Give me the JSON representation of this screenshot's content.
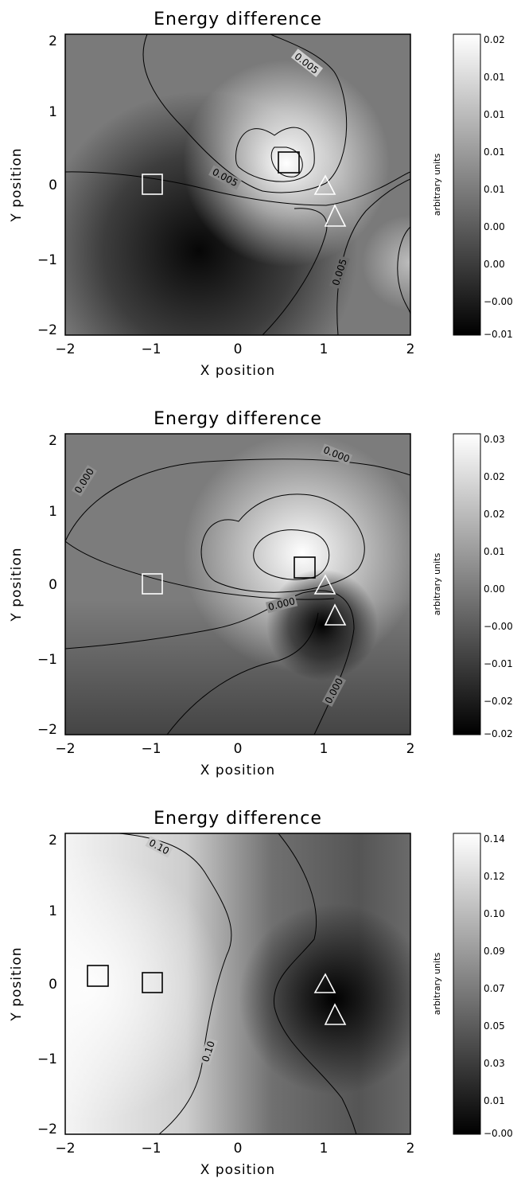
{
  "chart_data": [
    {
      "type": "heatmap",
      "title": "Energy difference",
      "xlabel": "X position",
      "ylabel": "Y position",
      "xlim": [
        -2,
        2
      ],
      "ylim": [
        -2.1,
        2.1
      ],
      "x_ticks": [
        "-2",
        "-1",
        "0",
        "1",
        "2"
      ],
      "y_ticks": [
        "-2",
        "-1",
        "0",
        "1",
        "2"
      ],
      "colorbar": {
        "label": "arbitrary units",
        "ticks": [
          "0.02",
          "0.01",
          "0.01",
          "0.01",
          "0.01",
          "0.00",
          "0.00",
          "-0.00",
          "-0.01"
        ]
      },
      "contour_labels": [
        "0.005",
        "0.005",
        "0.005"
      ],
      "markers": {
        "squares": [
          {
            "x": -0.97,
            "y": 0.0,
            "color": "white"
          },
          {
            "x": 0.6,
            "y": 0.28,
            "color": "black"
          }
        ],
        "triangles": [
          {
            "x": 1.0,
            "y": -0.05,
            "color": "white"
          },
          {
            "x": 1.12,
            "y": -0.45,
            "color": "white"
          }
        ]
      }
    },
    {
      "type": "heatmap",
      "title": "Energy difference",
      "xlabel": "X position",
      "ylabel": "Y position",
      "xlim": [
        -2,
        2
      ],
      "ylim": [
        -2.1,
        2.1
      ],
      "x_ticks": [
        "-2",
        "-1",
        "0",
        "1",
        "2"
      ],
      "y_ticks": [
        "-2",
        "-1",
        "0",
        "1",
        "2"
      ],
      "colorbar": {
        "label": "arbitrary units",
        "ticks": [
          "0.03",
          "0.02",
          "0.02",
          "0.01",
          "0.00",
          "-0.00",
          "-0.01",
          "-0.02",
          "-0.02"
        ]
      },
      "contour_labels": [
        "0.000",
        "0.000",
        "0.000",
        "0.000"
      ],
      "markers": {
        "squares": [
          {
            "x": -0.97,
            "y": 0.0,
            "color": "white"
          },
          {
            "x": 0.78,
            "y": 0.22,
            "color": "black"
          }
        ],
        "triangles": [
          {
            "x": 1.0,
            "y": -0.05,
            "color": "white"
          },
          {
            "x": 1.12,
            "y": -0.45,
            "color": "black"
          }
        ]
      }
    },
    {
      "type": "heatmap",
      "title": "Energy difference",
      "xlabel": "X position",
      "ylabel": "Y position",
      "xlim": [
        -2,
        2
      ],
      "ylim": [
        -2.1,
        2.1
      ],
      "x_ticks": [
        "-2",
        "-1",
        "0",
        "1",
        "2"
      ],
      "y_ticks": [
        "-2",
        "-1",
        "0",
        "1",
        "2"
      ],
      "colorbar": {
        "label": "arbitrary units",
        "ticks": [
          "0.14",
          "0.12",
          "0.10",
          "0.09",
          "0.07",
          "0.05",
          "0.03",
          "0.01",
          "-0.00"
        ]
      },
      "contour_labels": [
        "0.10",
        "0.10"
      ],
      "markers": {
        "squares": [
          {
            "x": -1.65,
            "y": 0.1,
            "color": "black"
          },
          {
            "x": -0.97,
            "y": 0.0,
            "color": "black"
          }
        ],
        "triangles": [
          {
            "x": 1.0,
            "y": -0.05,
            "color": "white"
          },
          {
            "x": 1.12,
            "y": -0.45,
            "color": "white"
          }
        ]
      }
    }
  ]
}
